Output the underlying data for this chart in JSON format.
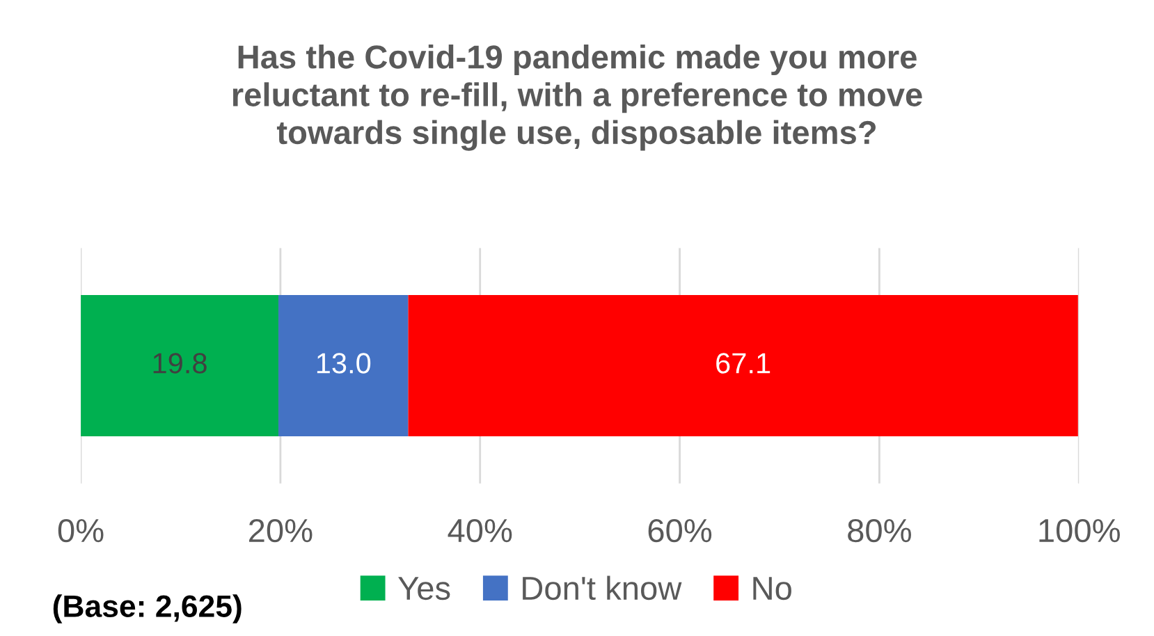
{
  "chart_data": {
    "type": "bar",
    "orientation": "horizontal",
    "stacked": true,
    "title": "Has the Covid-19 pandemic made you more\nreluctant to re-fill, with a preference to move\ntowards single use, disposable items?",
    "categories": [
      null
    ],
    "series": [
      {
        "name": "Yes",
        "color": "#00b050",
        "values": [
          19.8
        ],
        "value_labels": [
          "19.8"
        ]
      },
      {
        "name": "Don't know",
        "color": "#4472c4",
        "values": [
          13.0
        ],
        "value_labels": [
          "13.0"
        ]
      },
      {
        "name": "No",
        "color": "#ff0000",
        "values": [
          67.1
        ],
        "value_labels": [
          "67.1"
        ]
      }
    ],
    "xlim": [
      0,
      100
    ],
    "xticks": [
      {
        "value": 0,
        "label": "0%"
      },
      {
        "value": 20,
        "label": "20%"
      },
      {
        "value": 40,
        "label": "40%"
      },
      {
        "value": 60,
        "label": "60%"
      },
      {
        "value": 80,
        "label": "80%"
      },
      {
        "value": 100,
        "label": "100%"
      }
    ],
    "grid": "x",
    "legend": "bottom",
    "annotations": [
      "(Base: 2,625)"
    ]
  }
}
